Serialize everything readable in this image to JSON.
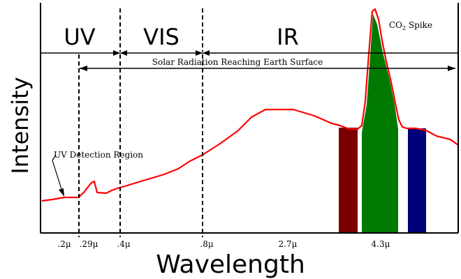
{
  "chart_data": {
    "type": "line",
    "xlabel": "Wavelength",
    "ylabel": "Intensity",
    "x_ticks": [
      ".2μ",
      ".29μ",
      ".4μ",
      ".8μ",
      "2.7μ",
      "4.3μ"
    ],
    "bands": [
      "UV",
      "VIS",
      "IR"
    ],
    "annotations": {
      "solar": "Solar Radiation Reaching Earth Surface",
      "uv_detection": "UV Detection Region",
      "co2_main": "CO",
      "co2_sub": "2",
      "co2_tail": " Spike"
    },
    "colors": {
      "curve": "#ff0000",
      "absorption_dark_red": "#7a0000",
      "absorption_green": "#007a00",
      "absorption_blue": "#00007a"
    }
  }
}
